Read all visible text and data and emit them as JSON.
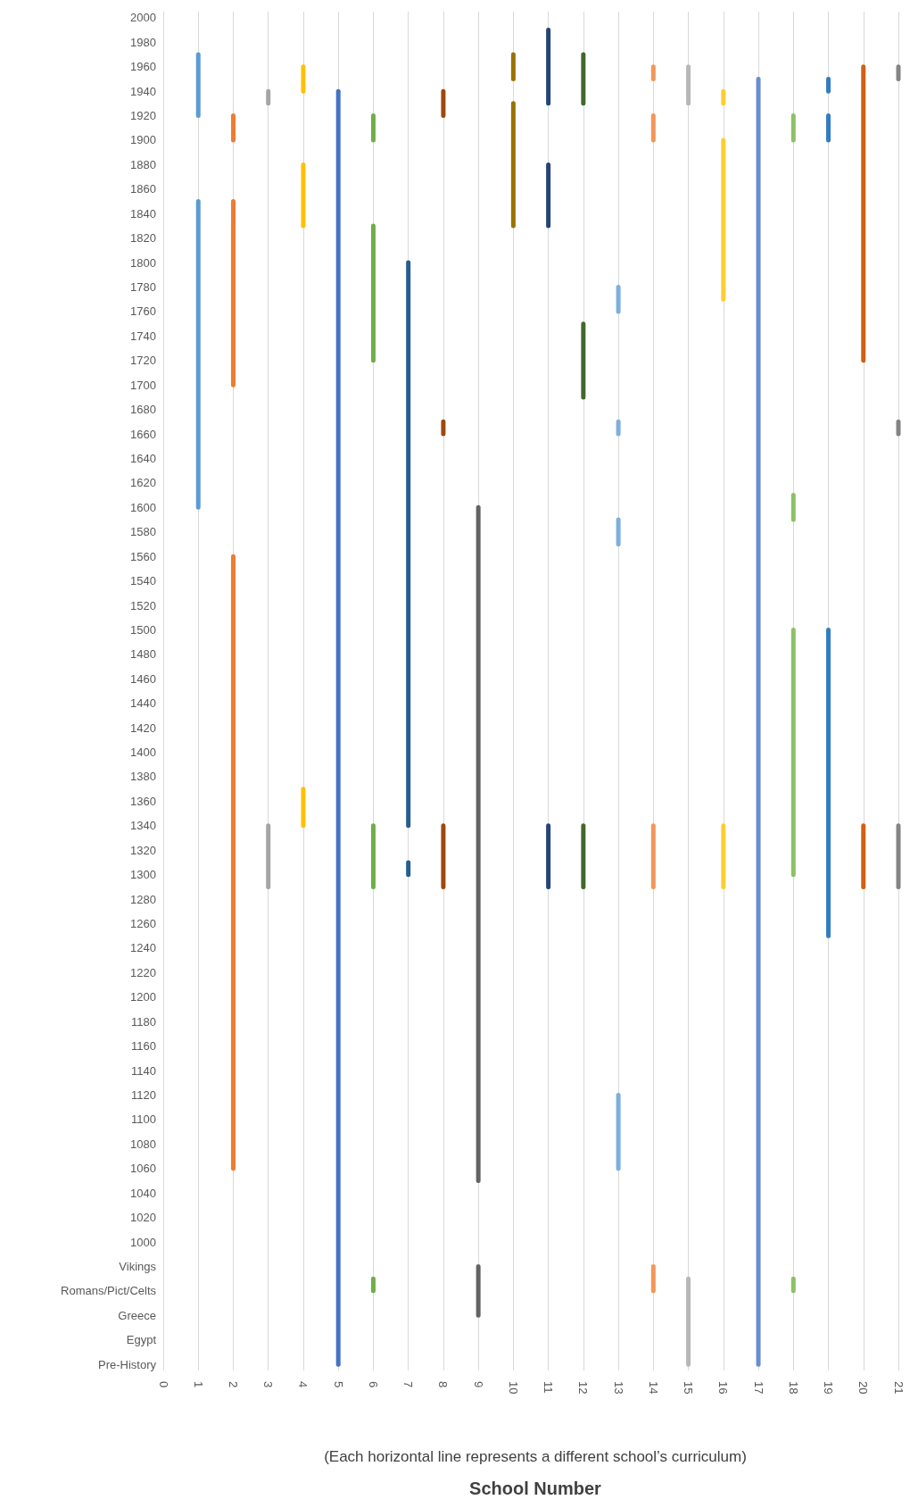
{
  "chart_data": {
    "type": "line",
    "orientation": "horizontal",
    "xlabel": "School Number",
    "subtitle": "(Each horizontal line represents a different school’s curriculum)",
    "categories": [
      "2000",
      null,
      "1980",
      null,
      "1960",
      null,
      "1940",
      null,
      "1920",
      null,
      "1900",
      null,
      "1880",
      null,
      "1860",
      null,
      "1840",
      null,
      "1820",
      null,
      "1800",
      null,
      "1780",
      null,
      "1760",
      null,
      "1740",
      null,
      "1720",
      null,
      "1700",
      null,
      "1680",
      null,
      "1660",
      null,
      "1640",
      null,
      "1620",
      null,
      "1600",
      null,
      "1580",
      null,
      "1560",
      null,
      "1540",
      null,
      "1520",
      null,
      "1500",
      null,
      "1480",
      null,
      "1460",
      null,
      "1440",
      null,
      "1420",
      null,
      "1400",
      null,
      "1380",
      null,
      "1360",
      null,
      "1340",
      null,
      "1320",
      null,
      "1300",
      null,
      "1280",
      null,
      "1260",
      null,
      "1240",
      null,
      "1220",
      null,
      "1200",
      null,
      "1180",
      null,
      "1160",
      null,
      "1140",
      null,
      "1120",
      null,
      "1100",
      null,
      "1080",
      null,
      "1060",
      null,
      "1040",
      null,
      "1020",
      null,
      "1000",
      null,
      "Vikings",
      null,
      "Romans/Pict/Celts",
      null,
      "Greece",
      null,
      "Egypt",
      null,
      "Pre-History"
    ],
    "xlim": [
      0,
      21
    ],
    "xticks": [
      0,
      1,
      2,
      3,
      4,
      5,
      6,
      7,
      8,
      9,
      10,
      11,
      12,
      13,
      14,
      15,
      16,
      17,
      18,
      19,
      20,
      21
    ],
    "grid": "x",
    "marker": "none",
    "line_style": "solid",
    "series": [
      {
        "color": "#5b9bd5",
        "values": [
          null,
          null,
          null,
          1,
          1,
          1,
          1,
          1,
          1,
          null,
          null,
          null,
          null,
          null,
          null,
          1,
          1,
          1,
          1,
          1,
          1,
          1,
          1,
          1,
          1,
          1,
          1,
          1,
          1,
          1,
          1,
          1,
          1,
          1,
          1,
          1,
          1,
          1,
          1,
          1,
          1,
          null,
          null,
          null,
          null,
          null,
          null,
          null,
          null,
          null,
          null,
          null,
          null,
          null,
          null,
          null,
          null,
          null,
          null,
          null,
          null,
          null,
          null,
          null,
          null,
          null,
          null,
          null,
          null,
          null,
          null,
          null,
          null,
          null,
          null,
          null,
          null,
          null,
          null,
          null,
          null,
          null,
          null,
          null,
          null,
          null,
          null,
          null,
          null,
          null,
          null,
          null,
          null,
          null,
          null,
          null,
          null,
          null,
          null,
          null,
          null,
          null,
          null,
          null,
          null,
          null,
          null,
          null,
          null,
          null,
          null
        ]
      },
      {
        "color": "#ed7d31",
        "values": [
          null,
          null,
          null,
          null,
          null,
          null,
          null,
          null,
          2,
          2,
          2,
          null,
          null,
          null,
          null,
          2,
          2,
          2,
          2,
          2,
          2,
          2,
          2,
          2,
          2,
          2,
          2,
          2,
          2,
          2,
          2,
          null,
          null,
          null,
          null,
          null,
          null,
          null,
          null,
          null,
          null,
          null,
          null,
          null,
          2,
          2,
          2,
          2,
          2,
          2,
          2,
          2,
          2,
          2,
          2,
          2,
          2,
          2,
          2,
          2,
          2,
          2,
          2,
          2,
          2,
          2,
          2,
          2,
          2,
          2,
          2,
          2,
          2,
          2,
          2,
          2,
          2,
          2,
          2,
          2,
          2,
          2,
          2,
          2,
          2,
          2,
          2,
          2,
          2,
          2,
          2,
          2,
          2,
          2,
          2,
          null,
          null,
          null,
          null,
          null,
          null,
          null,
          null,
          null,
          null,
          null,
          null,
          null,
          null,
          null,
          null
        ]
      },
      {
        "color": "#a5a5a5",
        "values": [
          null,
          null,
          null,
          null,
          null,
          null,
          3,
          3,
          null,
          null,
          null,
          null,
          null,
          null,
          null,
          null,
          null,
          null,
          null,
          null,
          null,
          null,
          null,
          null,
          null,
          null,
          null,
          null,
          null,
          null,
          null,
          null,
          null,
          null,
          null,
          null,
          null,
          null,
          null,
          null,
          null,
          null,
          null,
          null,
          null,
          null,
          null,
          null,
          null,
          null,
          null,
          null,
          null,
          null,
          null,
          null,
          null,
          null,
          null,
          null,
          null,
          null,
          null,
          null,
          null,
          null,
          3,
          3,
          3,
          3,
          3,
          3,
          null,
          null,
          null,
          null,
          null,
          null,
          null,
          null,
          null,
          null,
          null,
          null,
          null,
          null,
          null,
          null,
          null,
          null,
          null,
          null,
          null,
          null,
          null,
          null,
          null,
          null,
          null,
          null,
          null,
          null,
          null,
          null,
          null,
          null,
          null,
          null,
          null,
          null,
          null
        ]
      },
      {
        "color": "#ffc000",
        "values": [
          null,
          null,
          null,
          null,
          4,
          4,
          4,
          null,
          null,
          null,
          null,
          null,
          4,
          4,
          4,
          4,
          4,
          4,
          null,
          null,
          null,
          null,
          null,
          null,
          null,
          null,
          null,
          null,
          null,
          null,
          null,
          null,
          null,
          null,
          null,
          null,
          null,
          null,
          null,
          null,
          null,
          null,
          null,
          null,
          null,
          null,
          null,
          null,
          null,
          null,
          null,
          null,
          null,
          null,
          null,
          null,
          null,
          null,
          null,
          null,
          null,
          null,
          null,
          4,
          4,
          4,
          4,
          null,
          null,
          null,
          null,
          null,
          null,
          null,
          null,
          null,
          null,
          null,
          null,
          null,
          null,
          null,
          null,
          null,
          null,
          null,
          null,
          null,
          null,
          null,
          null,
          null,
          null,
          null,
          null,
          null,
          null,
          null,
          null,
          null,
          null,
          null,
          null,
          null,
          null,
          null,
          null,
          null,
          null,
          null,
          null
        ]
      },
      {
        "color": "#4472c4",
        "values": [
          null,
          null,
          null,
          null,
          null,
          null,
          5,
          5,
          5,
          5,
          5,
          5,
          5,
          5,
          5,
          5,
          5,
          5,
          5,
          5,
          5,
          5,
          5,
          5,
          5,
          5,
          5,
          5,
          5,
          5,
          5,
          5,
          5,
          5,
          5,
          5,
          5,
          5,
          5,
          5,
          5,
          5,
          5,
          5,
          5,
          5,
          5,
          5,
          5,
          5,
          5,
          5,
          5,
          5,
          5,
          5,
          5,
          5,
          5,
          5,
          5,
          5,
          5,
          5,
          5,
          5,
          5,
          5,
          5,
          5,
          5,
          5,
          5,
          5,
          5,
          5,
          5,
          5,
          5,
          5,
          5,
          5,
          5,
          5,
          5,
          5,
          5,
          5,
          5,
          5,
          5,
          5,
          5,
          5,
          5,
          5,
          5,
          5,
          5,
          5,
          5,
          5,
          5,
          5,
          5,
          5,
          5,
          5,
          5,
          5,
          5
        ]
      },
      {
        "color": "#70ad47",
        "values": [
          null,
          null,
          null,
          null,
          null,
          null,
          null,
          null,
          6,
          6,
          6,
          null,
          null,
          null,
          null,
          null,
          null,
          6,
          6,
          6,
          6,
          6,
          6,
          6,
          6,
          6,
          6,
          6,
          6,
          null,
          null,
          null,
          null,
          null,
          null,
          null,
          null,
          null,
          null,
          null,
          null,
          null,
          null,
          null,
          null,
          null,
          null,
          null,
          null,
          null,
          null,
          null,
          null,
          null,
          null,
          null,
          null,
          null,
          null,
          null,
          null,
          null,
          null,
          null,
          null,
          null,
          6,
          6,
          6,
          6,
          6,
          6,
          null,
          null,
          null,
          null,
          null,
          null,
          null,
          null,
          null,
          null,
          null,
          null,
          null,
          null,
          null,
          null,
          null,
          null,
          null,
          null,
          null,
          null,
          null,
          null,
          null,
          null,
          null,
          null,
          null,
          null,
          null,
          6,
          6,
          null,
          null,
          null,
          null,
          null,
          null
        ]
      },
      {
        "color": "#255e91",
        "values": [
          null,
          null,
          null,
          null,
          null,
          null,
          null,
          null,
          null,
          null,
          null,
          null,
          null,
          null,
          null,
          null,
          null,
          null,
          null,
          null,
          7,
          7,
          7,
          7,
          7,
          7,
          7,
          7,
          7,
          7,
          7,
          7,
          7,
          7,
          7,
          7,
          7,
          7,
          7,
          7,
          7,
          7,
          7,
          7,
          7,
          7,
          7,
          7,
          7,
          7,
          7,
          7,
          7,
          7,
          7,
          7,
          7,
          7,
          7,
          7,
          7,
          7,
          7,
          7,
          7,
          7,
          7,
          null,
          null,
          7,
          7,
          null,
          null,
          null,
          null,
          null,
          null,
          null,
          null,
          null,
          null,
          null,
          null,
          null,
          null,
          null,
          null,
          null,
          null,
          null,
          null,
          null,
          null,
          null,
          null,
          null,
          null,
          null,
          null,
          null,
          null,
          null,
          null,
          null,
          null,
          null,
          null,
          null,
          null,
          null,
          null
        ]
      },
      {
        "color": "#9e480e",
        "values": [
          null,
          null,
          null,
          null,
          null,
          null,
          8,
          8,
          8,
          null,
          null,
          null,
          null,
          null,
          null,
          null,
          null,
          null,
          null,
          null,
          null,
          null,
          null,
          null,
          null,
          null,
          null,
          null,
          null,
          null,
          null,
          null,
          null,
          8,
          8,
          null,
          null,
          null,
          null,
          null,
          null,
          null,
          null,
          null,
          null,
          null,
          null,
          null,
          null,
          null,
          null,
          null,
          null,
          null,
          null,
          null,
          null,
          null,
          null,
          null,
          null,
          null,
          null,
          null,
          null,
          null,
          8,
          8,
          8,
          8,
          8,
          8,
          null,
          null,
          null,
          null,
          null,
          null,
          null,
          null,
          null,
          null,
          null,
          null,
          null,
          null,
          null,
          null,
          null,
          null,
          null,
          null,
          null,
          null,
          null,
          null,
          null,
          null,
          null,
          null,
          null,
          null,
          null,
          null,
          null,
          null,
          null,
          null,
          null,
          null,
          null
        ]
      },
      {
        "color": "#636363",
        "values": [
          null,
          null,
          null,
          null,
          null,
          null,
          null,
          null,
          null,
          null,
          null,
          null,
          null,
          null,
          null,
          null,
          null,
          null,
          null,
          null,
          null,
          null,
          null,
          null,
          null,
          null,
          null,
          null,
          null,
          null,
          null,
          null,
          null,
          null,
          null,
          null,
          null,
          null,
          null,
          null,
          9,
          9,
          9,
          9,
          9,
          9,
          9,
          9,
          9,
          9,
          9,
          9,
          9,
          9,
          9,
          9,
          9,
          9,
          9,
          9,
          9,
          9,
          9,
          9,
          9,
          9,
          9,
          9,
          9,
          9,
          9,
          9,
          9,
          9,
          9,
          9,
          9,
          9,
          9,
          9,
          9,
          9,
          9,
          9,
          9,
          9,
          9,
          9,
          9,
          9,
          9,
          9,
          9,
          9,
          9,
          9,
          null,
          null,
          null,
          null,
          null,
          null,
          9,
          9,
          9,
          9,
          9,
          null,
          null,
          null,
          null
        ]
      },
      {
        "color": "#997300",
        "values": [
          null,
          null,
          null,
          10,
          10,
          10,
          null,
          10,
          10,
          10,
          10,
          10,
          10,
          10,
          10,
          10,
          10,
          10,
          null,
          null,
          null,
          null,
          null,
          null,
          null,
          null,
          null,
          null,
          null,
          null,
          null,
          null,
          null,
          null,
          null,
          null,
          null,
          null,
          null,
          null,
          null,
          null,
          null,
          null,
          null,
          null,
          null,
          null,
          null,
          null,
          null,
          null,
          null,
          null,
          null,
          null,
          null,
          null,
          null,
          null,
          null,
          null,
          null,
          null,
          null,
          null,
          null,
          null,
          null,
          null,
          null,
          null,
          null,
          null,
          null,
          null,
          null,
          null,
          null,
          null,
          null,
          null,
          null,
          null,
          null,
          null,
          null,
          null,
          null,
          null,
          null,
          null,
          null,
          null,
          null,
          null,
          null,
          null,
          null,
          null,
          null,
          null,
          null,
          null,
          null,
          null,
          null,
          null,
          null,
          null,
          null
        ]
      },
      {
        "color": "#264478",
        "values": [
          null,
          11,
          11,
          11,
          11,
          11,
          11,
          11,
          null,
          null,
          null,
          null,
          11,
          11,
          11,
          11,
          11,
          11,
          null,
          null,
          null,
          null,
          null,
          null,
          null,
          null,
          null,
          null,
          null,
          null,
          null,
          null,
          null,
          null,
          null,
          null,
          null,
          null,
          null,
          null,
          null,
          null,
          null,
          null,
          null,
          null,
          null,
          null,
          null,
          null,
          null,
          null,
          null,
          null,
          null,
          null,
          null,
          null,
          null,
          null,
          null,
          null,
          null,
          null,
          null,
          null,
          11,
          11,
          11,
          11,
          11,
          11,
          null,
          null,
          null,
          null,
          null,
          null,
          null,
          null,
          null,
          null,
          null,
          null,
          null,
          null,
          null,
          null,
          null,
          null,
          null,
          null,
          null,
          null,
          null,
          null,
          null,
          null,
          null,
          null,
          null,
          null,
          null,
          null,
          null,
          null,
          null,
          null,
          null,
          null,
          null
        ]
      },
      {
        "color": "#43682b",
        "values": [
          null,
          null,
          null,
          12,
          12,
          12,
          12,
          12,
          null,
          null,
          null,
          null,
          null,
          null,
          null,
          null,
          null,
          null,
          null,
          null,
          null,
          null,
          null,
          null,
          null,
          12,
          12,
          12,
          12,
          12,
          12,
          12,
          null,
          null,
          null,
          null,
          null,
          null,
          null,
          null,
          null,
          null,
          null,
          null,
          null,
          null,
          null,
          null,
          null,
          null,
          null,
          null,
          null,
          null,
          null,
          null,
          null,
          null,
          null,
          null,
          null,
          null,
          null,
          null,
          null,
          null,
          12,
          12,
          12,
          12,
          12,
          12,
          null,
          null,
          null,
          null,
          null,
          null,
          null,
          null,
          null,
          null,
          null,
          null,
          null,
          null,
          null,
          null,
          null,
          null,
          null,
          null,
          null,
          null,
          null,
          null,
          null,
          null,
          null,
          null,
          null,
          null,
          null,
          null,
          null,
          null,
          null,
          null,
          null,
          null,
          null
        ]
      },
      {
        "color": "#7cafdd",
        "values": [
          null,
          null,
          null,
          null,
          null,
          null,
          null,
          null,
          null,
          null,
          null,
          null,
          null,
          null,
          null,
          null,
          null,
          null,
          null,
          null,
          null,
          null,
          13,
          13,
          13,
          null,
          null,
          null,
          null,
          null,
          null,
          null,
          null,
          13,
          13,
          null,
          null,
          null,
          null,
          null,
          null,
          13,
          13,
          13,
          null,
          null,
          null,
          null,
          null,
          null,
          null,
          null,
          null,
          null,
          null,
          null,
          null,
          null,
          null,
          null,
          null,
          null,
          null,
          null,
          null,
          null,
          null,
          null,
          null,
          null,
          null,
          null,
          null,
          null,
          null,
          null,
          null,
          null,
          null,
          null,
          null,
          null,
          null,
          null,
          null,
          null,
          null,
          null,
          13,
          13,
          13,
          13,
          13,
          13,
          13,
          null,
          null,
          null,
          null,
          null,
          null,
          null,
          null,
          null,
          null,
          null,
          null,
          null,
          null,
          null,
          null
        ]
      },
      {
        "color": "#f1975a",
        "values": [
          null,
          null,
          null,
          null,
          14,
          14,
          null,
          null,
          14,
          14,
          14,
          null,
          null,
          null,
          null,
          null,
          null,
          null,
          null,
          null,
          null,
          null,
          null,
          null,
          null,
          null,
          null,
          null,
          null,
          null,
          null,
          null,
          null,
          null,
          null,
          null,
          null,
          null,
          null,
          null,
          null,
          null,
          null,
          null,
          null,
          null,
          null,
          null,
          null,
          null,
          null,
          null,
          null,
          null,
          null,
          null,
          null,
          null,
          null,
          null,
          null,
          null,
          null,
          null,
          null,
          null,
          14,
          14,
          14,
          14,
          14,
          14,
          null,
          null,
          null,
          null,
          null,
          null,
          null,
          null,
          null,
          null,
          null,
          null,
          null,
          null,
          null,
          null,
          null,
          null,
          null,
          null,
          null,
          null,
          null,
          null,
          null,
          null,
          null,
          null,
          null,
          null,
          14,
          14,
          14,
          null,
          null,
          null,
          null,
          null,
          null
        ]
      },
      {
        "color": "#b7b7b7",
        "values": [
          null,
          null,
          null,
          null,
          15,
          15,
          15,
          15,
          null,
          null,
          null,
          null,
          null,
          null,
          null,
          null,
          null,
          null,
          null,
          null,
          null,
          null,
          null,
          null,
          null,
          null,
          null,
          null,
          null,
          null,
          null,
          null,
          null,
          null,
          null,
          null,
          null,
          null,
          null,
          null,
          null,
          null,
          null,
          null,
          null,
          null,
          null,
          null,
          null,
          null,
          null,
          null,
          null,
          null,
          null,
          null,
          null,
          null,
          null,
          null,
          null,
          null,
          null,
          null,
          null,
          null,
          null,
          null,
          null,
          null,
          null,
          null,
          null,
          null,
          null,
          null,
          null,
          null,
          null,
          null,
          null,
          null,
          null,
          null,
          null,
          null,
          null,
          null,
          null,
          null,
          null,
          null,
          null,
          null,
          null,
          null,
          null,
          null,
          null,
          null,
          null,
          null,
          null,
          15,
          15,
          15,
          15,
          15,
          15,
          15,
          15
        ]
      },
      {
        "color": "#ffcd33",
        "values": [
          null,
          null,
          null,
          null,
          null,
          null,
          16,
          16,
          null,
          null,
          16,
          16,
          16,
          16,
          16,
          16,
          16,
          16,
          16,
          16,
          16,
          16,
          16,
          16,
          null,
          null,
          null,
          null,
          null,
          null,
          null,
          null,
          null,
          null,
          null,
          null,
          null,
          null,
          null,
          null,
          null,
          null,
          null,
          null,
          null,
          null,
          null,
          null,
          null,
          null,
          null,
          null,
          null,
          null,
          null,
          null,
          null,
          null,
          null,
          null,
          null,
          null,
          null,
          null,
          null,
          null,
          16,
          16,
          16,
          16,
          16,
          16,
          null,
          null,
          null,
          null,
          null,
          null,
          null,
          null,
          null,
          null,
          null,
          null,
          null,
          null,
          null,
          null,
          null,
          null,
          null,
          null,
          null,
          null,
          null,
          null,
          null,
          null,
          null,
          null,
          null,
          null,
          null,
          null,
          null,
          null,
          null,
          null,
          null,
          null,
          null
        ]
      },
      {
        "color": "#698ed0",
        "values": [
          null,
          null,
          null,
          null,
          null,
          17,
          17,
          17,
          17,
          17,
          17,
          17,
          17,
          17,
          17,
          17,
          17,
          17,
          17,
          17,
          17,
          17,
          17,
          17,
          17,
          17,
          17,
          17,
          17,
          17,
          17,
          17,
          17,
          17,
          17,
          17,
          17,
          17,
          17,
          17,
          17,
          17,
          17,
          17,
          17,
          17,
          17,
          17,
          17,
          17,
          17,
          17,
          17,
          17,
          17,
          17,
          17,
          17,
          17,
          17,
          17,
          17,
          17,
          17,
          17,
          17,
          17,
          17,
          17,
          17,
          17,
          17,
          17,
          17,
          17,
          17,
          17,
          17,
          17,
          17,
          17,
          17,
          17,
          17,
          17,
          17,
          17,
          17,
          17,
          17,
          17,
          17,
          17,
          17,
          17,
          17,
          17,
          17,
          17,
          17,
          17,
          17,
          17,
          17,
          17,
          17,
          17,
          17,
          17,
          17,
          17
        ]
      },
      {
        "color": "#8cc168",
        "values": [
          null,
          null,
          null,
          null,
          null,
          null,
          null,
          null,
          18,
          18,
          18,
          null,
          null,
          null,
          null,
          null,
          null,
          null,
          null,
          null,
          null,
          null,
          null,
          null,
          null,
          null,
          null,
          null,
          null,
          null,
          null,
          null,
          null,
          null,
          null,
          null,
          null,
          null,
          null,
          18,
          18,
          18,
          null,
          null,
          null,
          null,
          null,
          null,
          null,
          null,
          18,
          18,
          18,
          18,
          18,
          18,
          18,
          18,
          18,
          18,
          18,
          18,
          18,
          18,
          18,
          18,
          18,
          18,
          18,
          18,
          18,
          null,
          null,
          null,
          null,
          null,
          null,
          null,
          null,
          null,
          null,
          null,
          null,
          null,
          null,
          null,
          null,
          null,
          null,
          null,
          null,
          null,
          null,
          null,
          null,
          null,
          null,
          null,
          null,
          null,
          null,
          null,
          null,
          18,
          18,
          null,
          null,
          null,
          null,
          null,
          null
        ]
      },
      {
        "color": "#327dc2",
        "values": [
          null,
          null,
          null,
          null,
          null,
          19,
          19,
          null,
          19,
          19,
          19,
          null,
          null,
          null,
          null,
          null,
          null,
          null,
          null,
          null,
          null,
          null,
          null,
          null,
          null,
          null,
          null,
          null,
          null,
          null,
          null,
          null,
          null,
          null,
          null,
          null,
          null,
          null,
          null,
          null,
          null,
          null,
          null,
          null,
          null,
          null,
          null,
          null,
          null,
          null,
          19,
          19,
          19,
          19,
          19,
          19,
          19,
          19,
          19,
          19,
          19,
          19,
          19,
          19,
          19,
          19,
          19,
          19,
          19,
          19,
          19,
          19,
          19,
          19,
          19,
          19,
          null,
          null,
          null,
          null,
          null,
          null,
          null,
          null,
          null,
          null,
          null,
          null,
          null,
          null,
          null,
          null,
          null,
          null,
          null,
          null,
          null,
          null,
          null,
          null,
          null,
          null,
          null,
          null,
          null,
          null,
          null,
          null,
          null,
          null,
          null
        ]
      },
      {
        "color": "#d26012",
        "values": [
          null,
          null,
          null,
          null,
          20,
          20,
          20,
          20,
          20,
          20,
          20,
          20,
          20,
          20,
          20,
          20,
          20,
          20,
          20,
          20,
          20,
          20,
          20,
          20,
          20,
          20,
          20,
          20,
          20,
          null,
          null,
          null,
          null,
          null,
          null,
          null,
          null,
          null,
          null,
          null,
          null,
          null,
          null,
          null,
          null,
          null,
          null,
          null,
          null,
          null,
          null,
          null,
          null,
          null,
          null,
          null,
          null,
          null,
          null,
          null,
          null,
          null,
          null,
          null,
          null,
          null,
          20,
          20,
          20,
          20,
          20,
          20,
          null,
          null,
          null,
          null,
          null,
          null,
          null,
          null,
          null,
          null,
          null,
          null,
          null,
          null,
          null,
          null,
          null,
          null,
          null,
          null,
          null,
          null,
          null,
          null,
          null,
          null,
          null,
          null,
          null,
          null,
          null,
          null,
          null,
          null,
          null,
          null,
          null,
          null,
          null
        ]
      },
      {
        "color": "#848484",
        "values": [
          null,
          null,
          null,
          null,
          21,
          21,
          null,
          null,
          null,
          null,
          null,
          null,
          null,
          null,
          null,
          null,
          null,
          null,
          null,
          null,
          null,
          null,
          null,
          null,
          null,
          null,
          null,
          null,
          null,
          null,
          null,
          null,
          null,
          21,
          21,
          null,
          null,
          null,
          null,
          null,
          null,
          null,
          null,
          null,
          null,
          null,
          null,
          null,
          null,
          null,
          null,
          null,
          null,
          null,
          null,
          null,
          null,
          null,
          null,
          null,
          null,
          null,
          null,
          null,
          null,
          null,
          21,
          21,
          21,
          21,
          21,
          21,
          null,
          null,
          null,
          null,
          null,
          null,
          null,
          null,
          null,
          null,
          null,
          null,
          null,
          null,
          null,
          null,
          null,
          null,
          null,
          null,
          null,
          null,
          null,
          null,
          null,
          null,
          null,
          null,
          null,
          null,
          null,
          null,
          null,
          null,
          null,
          null,
          null,
          null,
          null
        ]
      }
    ]
  }
}
